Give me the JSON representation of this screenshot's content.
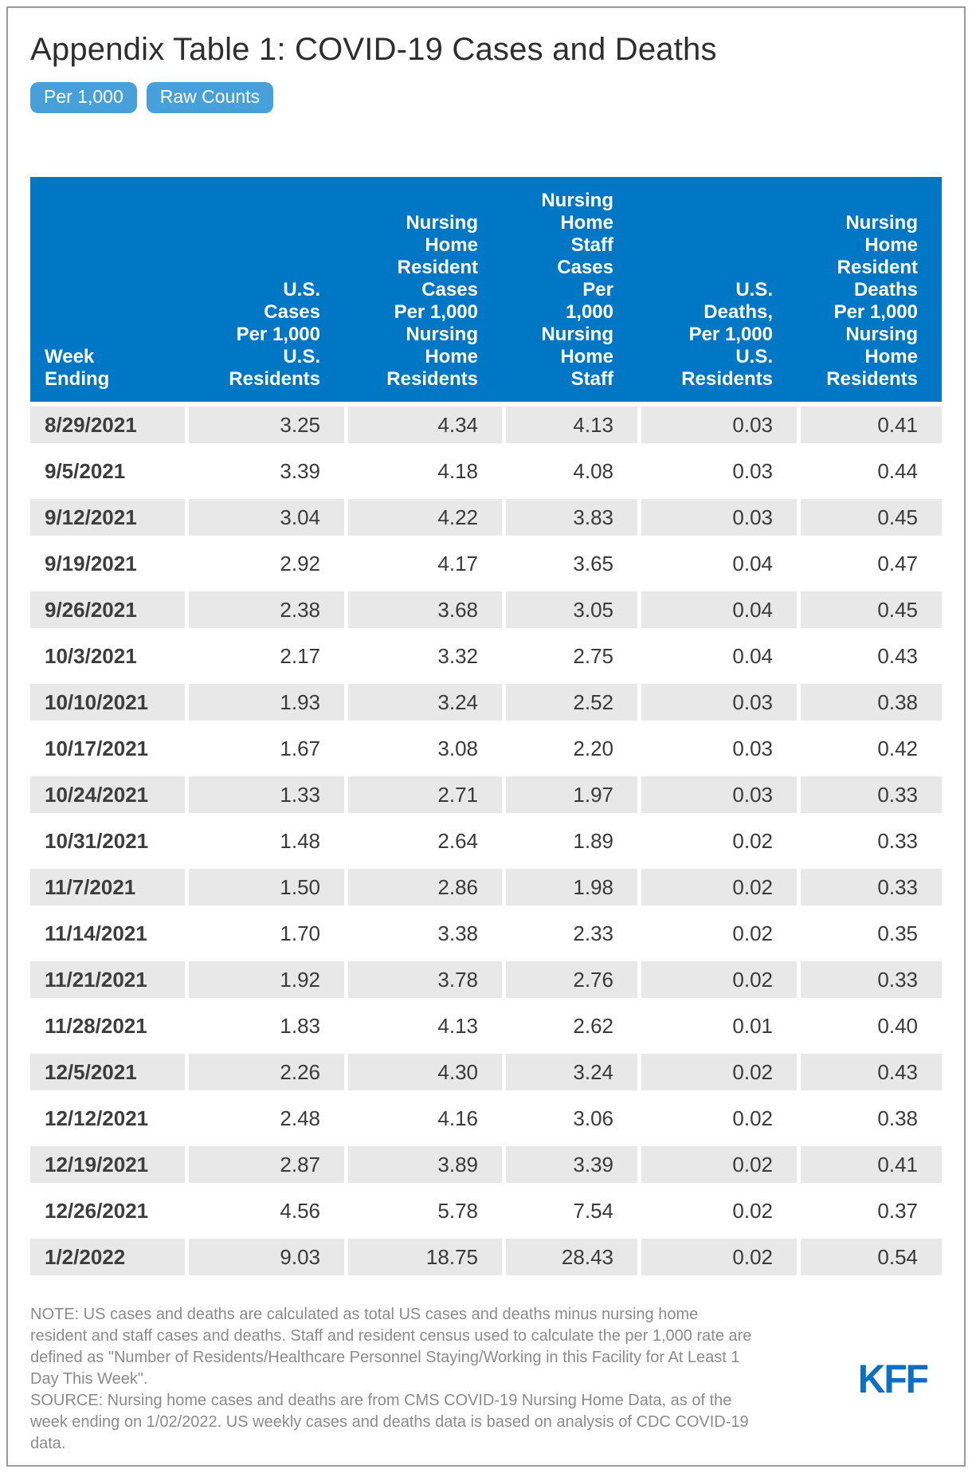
{
  "title": "Appendix Table 1: COVID-19 Cases and Deaths",
  "tabs": {
    "per_1000": "Per 1,000",
    "raw_counts": "Raw Counts"
  },
  "chart_data": {
    "type": "table",
    "title": "Appendix Table 1: COVID-19 Cases and Deaths",
    "columns": [
      "Week\nEnding",
      "U.S.\nCases\nPer 1,000\nU.S.\nResidents",
      "Nursing\nHome\nResident\nCases\nPer 1,000\nNursing\nHome\nResidents",
      "Nursing\nHome\nStaff\nCases\nPer\n1,000\nNursing\nHome\nStaff",
      "U.S.\nDeaths,\nPer 1,000\nU.S.\nResidents",
      "Nursing\nHome\nResident\nDeaths\nPer 1,000\nNursing\nHome\nResidents"
    ],
    "rows": [
      [
        "8/29/2021",
        "3.25",
        "4.34",
        "4.13",
        "0.03",
        "0.41"
      ],
      [
        "9/5/2021",
        "3.39",
        "4.18",
        "4.08",
        "0.03",
        "0.44"
      ],
      [
        "9/12/2021",
        "3.04",
        "4.22",
        "3.83",
        "0.03",
        "0.45"
      ],
      [
        "9/19/2021",
        "2.92",
        "4.17",
        "3.65",
        "0.04",
        "0.47"
      ],
      [
        "9/26/2021",
        "2.38",
        "3.68",
        "3.05",
        "0.04",
        "0.45"
      ],
      [
        "10/3/2021",
        "2.17",
        "3.32",
        "2.75",
        "0.04",
        "0.43"
      ],
      [
        "10/10/2021",
        "1.93",
        "3.24",
        "2.52",
        "0.03",
        "0.38"
      ],
      [
        "10/17/2021",
        "1.67",
        "3.08",
        "2.20",
        "0.03",
        "0.42"
      ],
      [
        "10/24/2021",
        "1.33",
        "2.71",
        "1.97",
        "0.03",
        "0.33"
      ],
      [
        "10/31/2021",
        "1.48",
        "2.64",
        "1.89",
        "0.02",
        "0.33"
      ],
      [
        "11/7/2021",
        "1.50",
        "2.86",
        "1.98",
        "0.02",
        "0.33"
      ],
      [
        "11/14/2021",
        "1.70",
        "3.38",
        "2.33",
        "0.02",
        "0.35"
      ],
      [
        "11/21/2021",
        "1.92",
        "3.78",
        "2.76",
        "0.02",
        "0.33"
      ],
      [
        "11/28/2021",
        "1.83",
        "4.13",
        "2.62",
        "0.01",
        "0.40"
      ],
      [
        "12/5/2021",
        "2.26",
        "4.30",
        "3.24",
        "0.02",
        "0.43"
      ],
      [
        "12/12/2021",
        "2.48",
        "4.16",
        "3.06",
        "0.02",
        "0.38"
      ],
      [
        "12/19/2021",
        "2.87",
        "3.89",
        "3.39",
        "0.02",
        "0.41"
      ],
      [
        "12/26/2021",
        "4.56",
        "5.78",
        "7.54",
        "0.02",
        "0.37"
      ],
      [
        "1/2/2022",
        "9.03",
        "18.75",
        "28.43",
        "0.02",
        "0.54"
      ]
    ]
  },
  "notes": {
    "note": "NOTE: US cases and deaths are calculated as total US cases and deaths minus nursing home resident and staff cases and deaths. Staff and resident census used to calculate the per 1,000 rate are defined as \"Number of Residents/Healthcare Personnel Staying/Working in this Facility for At Least 1 Day This Week\".",
    "source": "SOURCE: Nursing home cases and deaths are from CMS COVID-19 Nursing Home Data, as of the week ending on 1/02/2022. US weekly cases and deaths data is based on analysis of CDC COVID-19 data."
  },
  "logo_text": "KFF",
  "colors": {
    "header_bg": "#0077c4",
    "tab_bg": "#47a0da",
    "stripe": "#e8e8e8",
    "kff_blue": "#0d6fc4"
  }
}
